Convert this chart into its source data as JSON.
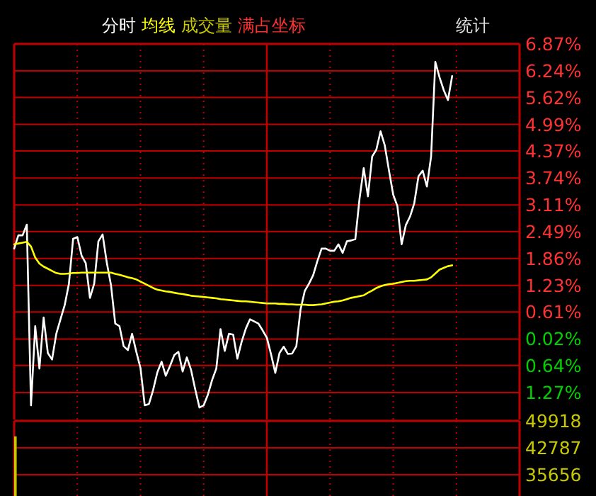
{
  "chart_data": [
    {
      "type": "line",
      "title": "分时",
      "annotations": [
        "满占坐标",
        "统计"
      ],
      "categories": [
        null,
        null,
        null,
        null,
        null,
        null,
        null,
        null,
        null,
        null,
        null,
        null,
        null,
        null,
        null,
        null,
        null,
        null,
        null,
        null,
        null,
        null,
        null,
        null,
        null,
        null,
        null,
        null,
        null,
        null,
        null,
        null,
        null,
        null,
        null,
        null,
        null,
        null,
        null,
        null,
        null,
        null,
        null,
        null,
        null,
        null,
        null,
        null,
        null,
        null,
        null,
        null,
        null,
        null,
        null,
        null,
        null,
        null,
        null,
        null,
        null,
        null,
        null,
        null,
        null,
        null,
        null,
        null,
        null,
        null,
        null,
        null,
        null,
        null,
        null,
        null,
        null,
        null,
        null,
        null,
        null,
        null,
        null,
        null,
        null,
        null,
        null,
        null,
        null,
        null,
        null,
        null,
        null,
        null,
        null,
        null,
        null,
        null,
        null,
        null,
        null,
        null,
        null,
        null,
        null,
        null,
        null,
        null,
        null,
        null,
        null,
        null,
        null,
        null,
        null,
        null,
        null,
        null,
        null,
        null,
        null
      ],
      "tick_labels": "y",
      "ylim": [
        -1.9,
        6.87
      ],
      "yticks": [
        {
          "value": 6.87,
          "label": "6.87%"
        },
        {
          "value": 6.24,
          "label": "6.24%"
        },
        {
          "value": 5.62,
          "label": "5.62%"
        },
        {
          "value": 4.99,
          "label": "4.99%"
        },
        {
          "value": 4.37,
          "label": "4.37%"
        },
        {
          "value": 3.74,
          "label": "3.74%"
        },
        {
          "value": 3.11,
          "label": "3.11%"
        },
        {
          "value": 2.49,
          "label": "2.49%"
        },
        {
          "value": 1.86,
          "label": "1.86%"
        },
        {
          "value": 1.23,
          "label": "1.23%"
        },
        {
          "value": 0.61,
          "label": "0.61%"
        },
        {
          "value": -0.02,
          "label": "0.02%"
        },
        {
          "value": -0.64,
          "label": "0.64%"
        },
        {
          "value": -1.27,
          "label": "1.27%"
        }
      ],
      "grid": true,
      "series": [
        {
          "color": "#ffffff",
          "values": [
            2.09,
            2.4,
            2.4,
            2.65,
            -1.57,
            0.28,
            -0.71,
            0.48,
            -0.35,
            -0.5,
            0.1,
            0.44,
            0.77,
            1.27,
            2.32,
            2.36,
            1.93,
            1.75,
            0.94,
            1.27,
            2.26,
            2.42,
            1.76,
            1.23,
            0.34,
            0.28,
            -0.19,
            -0.28,
            0.1,
            -0.32,
            -0.7,
            -1.57,
            -1.54,
            -1.21,
            -0.8,
            -0.55,
            -0.88,
            -0.65,
            -0.4,
            -0.32,
            -0.78,
            -0.45,
            -0.74,
            -1.2,
            -1.62,
            -1.57,
            -1.32,
            -0.98,
            -0.71,
            0.21,
            -0.3,
            0.1,
            0.08,
            -0.48,
            -0.09,
            0.22,
            0.44,
            0.39,
            0.34,
            0.18,
            0.01,
            -0.38,
            -0.81,
            -0.35,
            -0.2,
            -0.37,
            -0.36,
            -0.19,
            0.67,
            1.1,
            1.27,
            1.47,
            1.8,
            2.09,
            2.09,
            2.04,
            2.04,
            2.19,
            1.99,
            2.26,
            2.28,
            2.31,
            3.25,
            3.97,
            3.31,
            4.24,
            4.4,
            4.83,
            4.5,
            3.91,
            3.35,
            3.08,
            2.19,
            2.64,
            2.84,
            3.15,
            3.78,
            3.91,
            3.54,
            4.24,
            6.45,
            6.09,
            5.79,
            5.56,
            6.12,
            null,
            null,
            null,
            null,
            null,
            null,
            null,
            null,
            null,
            null,
            null,
            null,
            null,
            null,
            null,
            null
          ]
        },
        {
          "name": "均线",
          "color": "#ffff00",
          "values": [
            2.19,
            2.21,
            2.23,
            2.25,
            2.14,
            1.88,
            1.74,
            1.67,
            1.62,
            1.57,
            1.52,
            1.5,
            1.5,
            1.51,
            1.52,
            1.52,
            1.53,
            1.53,
            1.53,
            1.53,
            1.53,
            1.53,
            1.53,
            1.53,
            1.5,
            1.48,
            1.45,
            1.42,
            1.4,
            1.37,
            1.32,
            1.27,
            1.22,
            1.17,
            1.13,
            1.11,
            1.09,
            1.08,
            1.06,
            1.04,
            1.03,
            1.01,
            0.99,
            0.98,
            0.97,
            0.96,
            0.95,
            0.94,
            0.93,
            0.91,
            0.9,
            0.89,
            0.88,
            0.87,
            0.86,
            0.86,
            0.85,
            0.84,
            0.83,
            0.82,
            0.81,
            0.81,
            0.81,
            0.8,
            0.8,
            0.79,
            0.79,
            0.78,
            0.78,
            0.78,
            0.77,
            0.77,
            0.78,
            0.79,
            0.81,
            0.83,
            0.85,
            0.86,
            0.88,
            0.91,
            0.94,
            0.96,
            0.98,
            1.0,
            1.06,
            1.11,
            1.17,
            1.21,
            1.24,
            1.26,
            1.27,
            1.29,
            1.31,
            1.33,
            1.34,
            1.34,
            1.35,
            1.36,
            1.37,
            1.42,
            1.51,
            1.6,
            1.64,
            1.68,
            1.7,
            null,
            null,
            null,
            null,
            null,
            null,
            null,
            null,
            null,
            null,
            null,
            null,
            null,
            null,
            null,
            null
          ]
        }
      ]
    },
    {
      "type": "bar",
      "categories": [
        null,
        null,
        null,
        null,
        null,
        null,
        null,
        null,
        null,
        null,
        null,
        null,
        null,
        null,
        null,
        null,
        null,
        null,
        null,
        null,
        null,
        null,
        null,
        null,
        null,
        null,
        null,
        null,
        null,
        null,
        null,
        null,
        null,
        null,
        null,
        null,
        null,
        null,
        null,
        null,
        null,
        null,
        null,
        null,
        null,
        null,
        null,
        null,
        null,
        null,
        null,
        null,
        null,
        null,
        null,
        null,
        null,
        null,
        null,
        null,
        null,
        null,
        null,
        null,
        null,
        null,
        null,
        null,
        null,
        null,
        null,
        null,
        null,
        null,
        null,
        null,
        null,
        null,
        null,
        null,
        null,
        null,
        null,
        null,
        null,
        null,
        null,
        null,
        null,
        null,
        null,
        null,
        null,
        null,
        null,
        null,
        null,
        null,
        null,
        null,
        null,
        null,
        null,
        null,
        null,
        null,
        null,
        null,
        null,
        null,
        null,
        null,
        null,
        null,
        null,
        null,
        null,
        null,
        null,
        null,
        null
      ],
      "tick_labels": "y",
      "ylim": [
        30000,
        49918
      ],
      "yticks": [
        49918,
        42787,
        35656
      ],
      "grid": true,
      "series": [
        {
          "name": "成交量",
          "color": "#c8c800",
          "values": [
            45800,
            null,
            null,
            null,
            null,
            null,
            null,
            null,
            null,
            null,
            null,
            null,
            null,
            null,
            null,
            null,
            null,
            null,
            null,
            null,
            null,
            null,
            null,
            null,
            null,
            null,
            null,
            null,
            null,
            null,
            null,
            null,
            null,
            null,
            null,
            null,
            null,
            null,
            null,
            null,
            null,
            null,
            null,
            null,
            null,
            null,
            null,
            null,
            null,
            null,
            null,
            null,
            null,
            null,
            null,
            null,
            null,
            null,
            null,
            null,
            null,
            null,
            null,
            null,
            null,
            null,
            null,
            null,
            null,
            null,
            null,
            null,
            null,
            null,
            null,
            null,
            null,
            null,
            null,
            null,
            null,
            null,
            null,
            null,
            null,
            null,
            null,
            null,
            null,
            null,
            null,
            null,
            null,
            null,
            null,
            null,
            null,
            null,
            null,
            null,
            null,
            null,
            null,
            null,
            null,
            null,
            null,
            null,
            null,
            null,
            null,
            null,
            null,
            null,
            null,
            null,
            null,
            null,
            null,
            null,
            null
          ]
        }
      ]
    }
  ]
}
